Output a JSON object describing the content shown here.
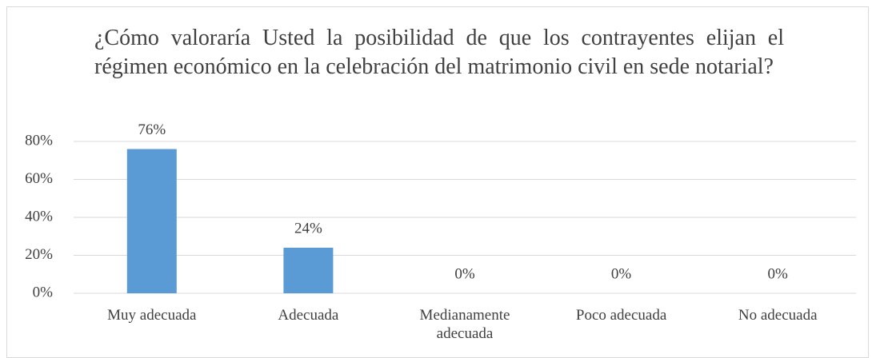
{
  "chart_data": {
    "type": "bar",
    "title": "¿Cómo valoraría Usted la posibilidad de que los contrayentes elijan el régimen económico en la celebración del matrimonio civil en sede notarial?",
    "categories": [
      "Muy adecuada",
      "Adecuada",
      "Medianamente adecuada",
      "Poco adecuada",
      "No adecuada"
    ],
    "values": [
      76,
      24,
      0,
      0,
      0
    ],
    "value_labels": [
      "76%",
      "24%",
      "0%",
      "0%",
      "0%"
    ],
    "color": "#5b9bd5",
    "ylim": [
      0,
      80
    ],
    "yticks": [
      {
        "value": 0,
        "label": "0%"
      },
      {
        "value": 20,
        "label": "20%"
      },
      {
        "value": 40,
        "label": "40%"
      },
      {
        "value": 60,
        "label": "60%"
      },
      {
        "value": 80,
        "label": "80%"
      }
    ],
    "grid": true
  }
}
